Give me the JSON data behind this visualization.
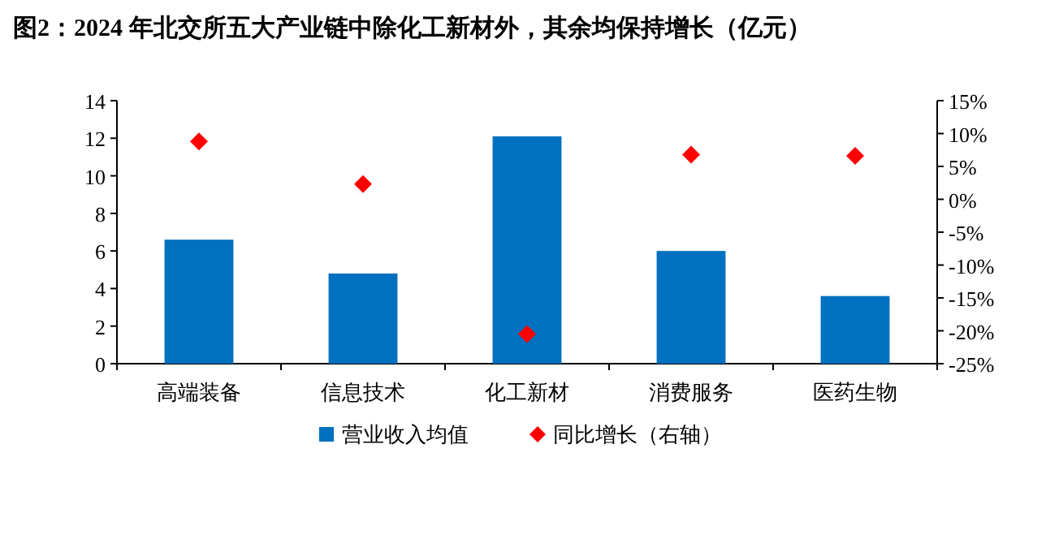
{
  "chart_data": {
    "type": "bar",
    "title": "图2：2024 年北交所五大产业链中除化工新材外，其余均保持增长（亿元）",
    "categories": [
      "高端装备",
      "信息技术",
      "化工新材",
      "消费服务",
      "医药生物"
    ],
    "series": [
      {
        "name": "营业收入均值",
        "color": "#0070c0",
        "values": [
          6.6,
          4.8,
          12.1,
          6.0,
          3.6
        ]
      },
      {
        "name": "同比增长（右轴）",
        "type": "scatter",
        "color": "#ff0000",
        "marker": "diamond",
        "axis": "y2",
        "values": [
          8.8,
          2.3,
          -20.5,
          6.8,
          6.6
        ]
      }
    ],
    "ylim": [
      0,
      14
    ],
    "yticks": [
      0,
      2,
      4,
      6,
      8,
      10,
      12,
      14
    ],
    "y2lim": [
      -25,
      15
    ],
    "y2ticks": [
      {
        "value": -25,
        "label": "-25%"
      },
      {
        "value": -20,
        "label": "-20%"
      },
      {
        "value": -15,
        "label": "-15%"
      },
      {
        "value": -10,
        "label": "-10%"
      },
      {
        "value": -5,
        "label": "-5%"
      },
      {
        "value": 0,
        "label": "0%"
      },
      {
        "value": 5,
        "label": "5%"
      },
      {
        "value": 10,
        "label": "10%"
      },
      {
        "value": 15,
        "label": "15%"
      }
    ],
    "grid": false,
    "legend": "bottom"
  }
}
